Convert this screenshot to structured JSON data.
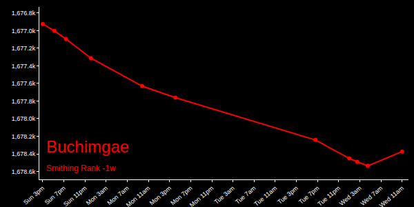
{
  "chart_data": {
    "type": "line",
    "title": "Buchimgae",
    "subtitle": "Smithing Rank -1w",
    "x": [
      15,
      17.2,
      19.4,
      24.1,
      33.8,
      40.1,
      66.6,
      73.0,
      74.5,
      76.5,
      83
    ],
    "values": [
      1676924,
      1677002,
      1677095,
      1677312,
      1677630,
      1677761,
      1678242,
      1678451,
      1678490,
      1678536,
      1678374
    ],
    "color": "#ff0000",
    "marker": "circle",
    "line_style": "solid",
    "grid": false,
    "xlim": [
      14.35,
      84.2
    ],
    "xticks": [
      {
        "value": 15,
        "label": "Sun 3pm"
      },
      {
        "value": 19,
        "label": "Sun 7pm"
      },
      {
        "value": 23,
        "label": "Sun 11pm"
      },
      {
        "value": 27,
        "label": "Mon 3am"
      },
      {
        "value": 31,
        "label": "Mon 7am"
      },
      {
        "value": 35,
        "label": "Mon 11am"
      },
      {
        "value": 39,
        "label": "Mon 3pm"
      },
      {
        "value": 43,
        "label": "Mon 7pm"
      },
      {
        "value": 47,
        "label": "Mon 11pm"
      },
      {
        "value": 51,
        "label": "Tue 3am"
      },
      {
        "value": 55,
        "label": "Tue 7am"
      },
      {
        "value": 59,
        "label": "Tue 11am"
      },
      {
        "value": 63,
        "label": "Tue 3pm"
      },
      {
        "value": 67,
        "label": "Tue 7pm"
      },
      {
        "value": 71,
        "label": "Tue 11pm"
      },
      {
        "value": 75,
        "label": "Wed 3am"
      },
      {
        "value": 79,
        "label": "Wed 7am"
      },
      {
        "value": 83,
        "label": "Wed 11am"
      }
    ],
    "ylim": [
      1678690,
      1676730
    ],
    "yticks": [
      {
        "value": 1676800,
        "label": "1,676.8k"
      },
      {
        "value": 1677000,
        "label": "1,677.0k"
      },
      {
        "value": 1677200,
        "label": "1,677.2k"
      },
      {
        "value": 1677400,
        "label": "1,677.4k"
      },
      {
        "value": 1677600,
        "label": "1,677.6k"
      },
      {
        "value": 1677800,
        "label": "1,677.8k"
      },
      {
        "value": 1678000,
        "label": "1,678.0k"
      },
      {
        "value": 1678200,
        "label": "1,678.2k"
      },
      {
        "value": 1678400,
        "label": "1,678.4k"
      },
      {
        "value": 1678600,
        "label": "1,678.6k"
      }
    ]
  }
}
